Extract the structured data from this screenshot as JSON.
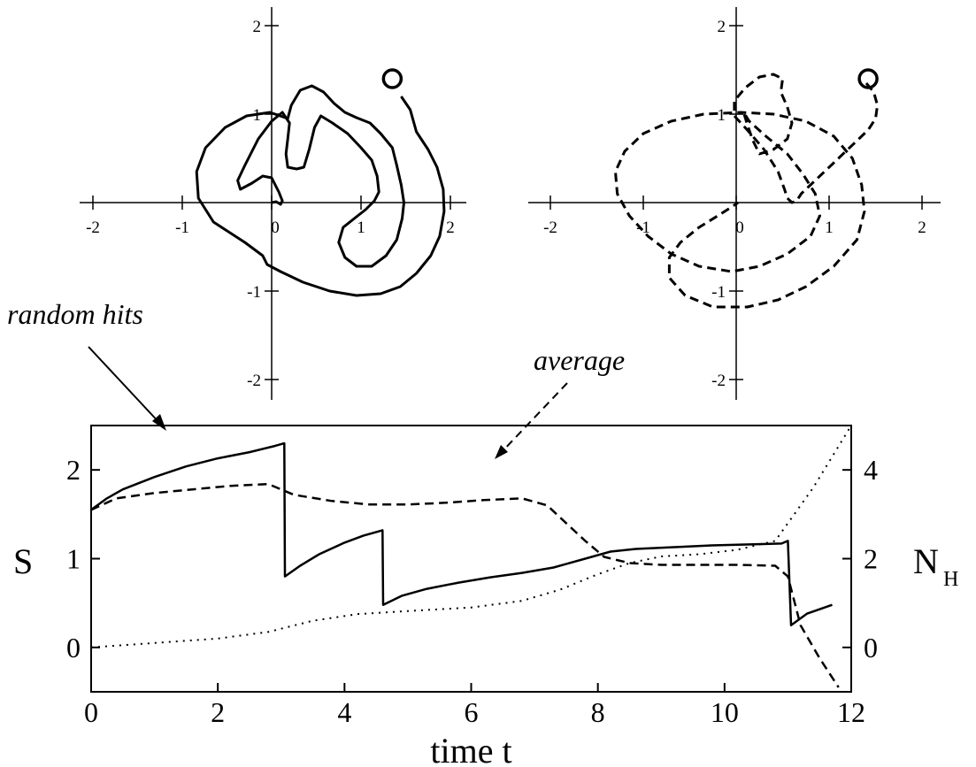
{
  "chart_data": [
    {
      "type": "line",
      "panel": "top-left",
      "xlim": [
        -2.2,
        2.2
      ],
      "ylim": [
        -2.2,
        2.2
      ],
      "x_ticks": [
        -2,
        -1,
        0,
        1,
        2
      ],
      "y_ticks": [
        -2,
        -1,
        1,
        2
      ],
      "y_tick_labels": [
        "-2",
        "-1",
        "1",
        "2"
      ],
      "x_tick_labels": [
        "-2",
        "-1",
        "0",
        "1",
        "2"
      ],
      "series": [
        {
          "style": "solid",
          "x": [
            1.45,
            1.55,
            1.62,
            1.75,
            1.85,
            1.92,
            1.93,
            1.88,
            1.78,
            1.62,
            1.44,
            1.22,
            0.95,
            0.65,
            0.35,
            0.1,
            -0.05,
            -0.1,
            -0.3,
            -0.65,
            -0.82,
            -0.84,
            -0.74,
            -0.52,
            -0.28,
            -0.02,
            0.18,
            0.22,
            0.32,
            0.45,
            0.58,
            0.7,
            0.82,
            0.95,
            1.1,
            1.22,
            1.35,
            1.4,
            1.45,
            1.48,
            1.46,
            1.4,
            1.28,
            1.12,
            0.95,
            0.82,
            0.75,
            0.8,
            0.95,
            1.05,
            1.15,
            1.2,
            1.18,
            1.12,
            1.0,
            0.85,
            0.68,
            0.55,
            0.48,
            0.42,
            0.36,
            0.28,
            0.18,
            0.16,
            0.18,
            0.2,
            0.12,
            0.0,
            -0.15,
            -0.3,
            -0.38,
            -0.35,
            -0.22,
            -0.1,
            0.0,
            0.08,
            0.12,
            0.1,
            0.05,
            0.0
          ],
          "y": [
            1.2,
            1.05,
            0.8,
            0.6,
            0.4,
            0.15,
            -0.1,
            -0.38,
            -0.6,
            -0.8,
            -0.95,
            -1.03,
            -1.05,
            -1.0,
            -0.9,
            -0.78,
            -0.7,
            -0.6,
            -0.45,
            -0.22,
            0.05,
            0.35,
            0.62,
            0.85,
            0.98,
            1.02,
            0.95,
            1.1,
            1.27,
            1.32,
            1.25,
            1.12,
            1.02,
            0.96,
            0.9,
            0.78,
            0.62,
            0.42,
            0.2,
            0.0,
            -0.18,
            -0.42,
            -0.6,
            -0.72,
            -0.72,
            -0.62,
            -0.45,
            -0.28,
            -0.16,
            -0.08,
            0.02,
            0.12,
            0.3,
            0.48,
            0.62,
            0.78,
            0.9,
            0.98,
            0.85,
            0.6,
            0.4,
            0.38,
            0.4,
            0.55,
            0.72,
            0.9,
            1.02,
            0.92,
            0.72,
            0.42,
            0.25,
            0.15,
            0.22,
            0.3,
            0.28,
            0.12,
            0.02,
            -0.02,
            0.01,
            0.0
          ]
        }
      ],
      "circle_marker": {
        "x": 1.35,
        "y": 1.4
      }
    },
    {
      "type": "line",
      "panel": "top-right",
      "xlim": [
        -2.2,
        2.2
      ],
      "ylim": [
        -2.2,
        2.2
      ],
      "x_ticks": [
        -2,
        -1,
        0,
        1,
        2
      ],
      "y_ticks": [
        -2,
        -1,
        1,
        2
      ],
      "y_tick_labels": [
        "-2",
        "-1",
        "1",
        "2"
      ],
      "x_tick_labels": [
        "-2",
        "-1",
        "0",
        "1",
        "2"
      ],
      "series": [
        {
          "style": "dashed",
          "x": [
            1.4,
            1.48,
            1.52,
            1.5,
            1.42,
            1.32,
            1.2,
            1.05,
            0.92,
            0.8,
            0.7,
            0.65,
            0.6,
            0.55,
            0.52,
            0.45,
            0.3,
            0.12,
            -0.02,
            -0.02,
            0.1,
            0.25,
            0.4,
            0.5,
            0.48,
            0.55,
            0.6,
            0.55,
            0.4,
            0.25,
            0.18,
            0.12,
            0.08,
            0.14,
            0.32,
            0.55,
            0.72,
            0.85,
            0.9,
            0.8,
            0.55,
            0.25,
            -0.05,
            -0.4,
            -0.7,
            -0.95,
            -1.15,
            -1.28,
            -1.3,
            -1.2,
            -1.0,
            -0.7,
            -0.35,
            0.05,
            0.4,
            0.75,
            1.05,
            1.25,
            1.35,
            1.38,
            1.3,
            1.05,
            0.75,
            0.45,
            0.12,
            -0.25,
            -0.55,
            -0.72,
            -0.72,
            -0.6,
            -0.4,
            -0.2,
            -0.05,
            0.02,
            0.02
          ],
          "y": [
            1.35,
            1.25,
            1.1,
            0.95,
            0.82,
            0.72,
            0.6,
            0.45,
            0.32,
            0.2,
            0.1,
            0.02,
            0.0,
            0.05,
            0.15,
            0.35,
            0.6,
            0.82,
            0.98,
            1.15,
            1.3,
            1.42,
            1.45,
            1.4,
            1.25,
            1.08,
            0.9,
            0.72,
            0.6,
            0.55,
            0.7,
            0.88,
            1.02,
            0.92,
            0.75,
            0.55,
            0.32,
            0.1,
            -0.15,
            -0.38,
            -0.58,
            -0.72,
            -0.78,
            -0.72,
            -0.58,
            -0.38,
            -0.15,
            0.1,
            0.35,
            0.58,
            0.78,
            0.92,
            1.0,
            1.02,
            1.0,
            0.92,
            0.75,
            0.5,
            0.2,
            -0.1,
            -0.42,
            -0.72,
            -0.95,
            -1.1,
            -1.18,
            -1.18,
            -1.05,
            -0.85,
            -0.62,
            -0.45,
            -0.28,
            -0.15,
            -0.05,
            0.0,
            0.0
          ]
        }
      ],
      "circle_marker": {
        "x": 1.42,
        "y": 1.4
      }
    },
    {
      "type": "line",
      "panel": "bottom",
      "xlabel": "time t",
      "ylabel": "S",
      "y2label": "N",
      "y2label_subscript": "H",
      "xlim": [
        0,
        12
      ],
      "ylim": [
        -0.5,
        2.5
      ],
      "y2lim": [
        -1,
        5
      ],
      "x_ticks": [
        0,
        2,
        4,
        6,
        8,
        10,
        12
      ],
      "y_ticks": [
        0,
        1,
        2
      ],
      "y2_ticks": [
        0,
        2,
        4
      ],
      "series": [
        {
          "style": "solid",
          "x": [
            0,
            0.25,
            0.5,
            1.0,
            1.5,
            2.0,
            2.5,
            2.9,
            3.05,
            3.06,
            3.3,
            3.6,
            4.0,
            4.3,
            4.6,
            4.61,
            4.9,
            5.3,
            5.8,
            6.3,
            6.8,
            7.3,
            7.8,
            8.2,
            8.6,
            9.2,
            9.8,
            10.4,
            10.9,
            11.0,
            11.05,
            11.3,
            11.7
          ],
          "y": [
            1.55,
            1.68,
            1.78,
            1.92,
            2.04,
            2.13,
            2.2,
            2.27,
            2.3,
            0.8,
            0.92,
            1.05,
            1.18,
            1.26,
            1.32,
            0.48,
            0.58,
            0.66,
            0.73,
            0.79,
            0.84,
            0.9,
            1.0,
            1.08,
            1.11,
            1.13,
            1.15,
            1.16,
            1.17,
            1.2,
            0.25,
            0.38,
            0.48
          ]
        },
        {
          "style": "dashed",
          "x": [
            0,
            0.4,
            1.0,
            1.6,
            2.2,
            2.8,
            3.2,
            3.8,
            4.4,
            5.0,
            5.6,
            6.2,
            6.8,
            7.2,
            7.5,
            7.8,
            8.1,
            8.5,
            9.0,
            9.6,
            10.2,
            10.8,
            11.0,
            11.2,
            11.5,
            11.8
          ],
          "y": [
            1.55,
            1.68,
            1.74,
            1.78,
            1.82,
            1.84,
            1.72,
            1.65,
            1.61,
            1.61,
            1.63,
            1.66,
            1.68,
            1.6,
            1.4,
            1.2,
            1.02,
            0.95,
            0.93,
            0.93,
            0.93,
            0.92,
            0.8,
            0.25,
            -0.12,
            -0.45
          ]
        },
        {
          "style": "dotted",
          "axis": "right",
          "x": [
            0,
            1.0,
            2.0,
            2.8,
            3.5,
            4.2,
            5.0,
            6.0,
            6.8,
            7.4,
            8.0,
            8.5,
            9.0,
            9.6,
            10.2,
            10.8,
            11.0,
            11.4,
            12.0
          ],
          "y": [
            0,
            0.1,
            0.2,
            0.35,
            0.6,
            0.75,
            0.82,
            0.9,
            1.05,
            1.3,
            1.65,
            1.9,
            2.05,
            2.1,
            2.2,
            2.4,
            2.8,
            3.6,
            5.0
          ]
        }
      ]
    }
  ],
  "annotations": {
    "random_hits": "random hits",
    "average": "average"
  }
}
